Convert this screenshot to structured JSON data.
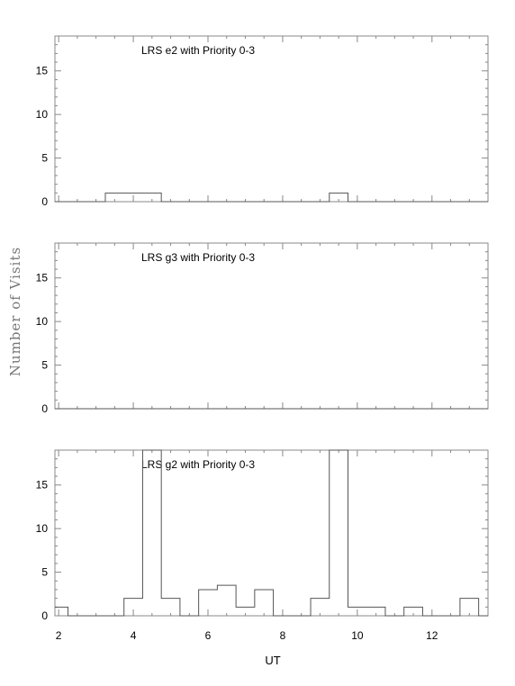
{
  "figure": {
    "xlabel": "UT",
    "ylabel": "Number of Visits"
  },
  "chart_data": [
    {
      "type": "bar",
      "title": "LRS e2 with Priority 0-3",
      "xlim": [
        1.9,
        13.5
      ],
      "ylim": [
        0,
        19
      ],
      "xticks": [
        2,
        4,
        6,
        8,
        10,
        12
      ],
      "yticks": [
        0,
        5,
        10,
        15
      ],
      "bin_edges": [
        1.9,
        2.25,
        3.25,
        3.75,
        4.25,
        4.75,
        9.25,
        9.75,
        13.5
      ],
      "values": [
        0,
        0,
        1,
        1,
        1,
        0,
        1,
        0
      ]
    },
    {
      "type": "bar",
      "title": "LRS g3 with Priority 0-3",
      "xlim": [
        1.9,
        13.5
      ],
      "ylim": [
        0,
        19
      ],
      "xticks": [
        2,
        4,
        6,
        8,
        10,
        12
      ],
      "yticks": [
        0,
        5,
        10,
        15
      ],
      "bin_edges": [
        1.9,
        13.5
      ],
      "values": [
        0
      ]
    },
    {
      "type": "bar",
      "title": "LRS g2 with Priority 0-3",
      "xlim": [
        1.9,
        13.5
      ],
      "ylim": [
        0,
        19
      ],
      "xticks": [
        2,
        4,
        6,
        8,
        10,
        12
      ],
      "yticks": [
        0,
        5,
        10,
        15
      ],
      "bin_edges": [
        1.9,
        2.25,
        3.75,
        4.25,
        4.75,
        5.25,
        5.75,
        6.25,
        6.75,
        7.25,
        7.75,
        8.25,
        8.75,
        9.25,
        9.75,
        10.25,
        10.75,
        11.25,
        11.75,
        12.25,
        12.75,
        13.25,
        13.5
      ],
      "values": [
        1,
        0,
        2,
        19,
        2,
        0,
        3,
        3.5,
        1,
        3,
        0,
        0,
        2,
        19,
        1,
        1,
        0,
        1,
        0,
        0,
        2,
        0
      ]
    }
  ]
}
